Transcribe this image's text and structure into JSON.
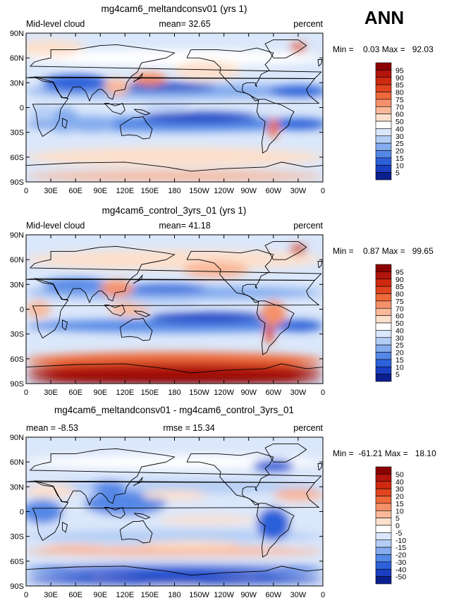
{
  "season": "ANN",
  "chart_data": [
    {
      "type": "heatmap",
      "title": "mg4cam6_meltandconsv01 (yrs 1)",
      "left_label": "Mid-level cloud",
      "center_label": "mean=  32.65",
      "right_label": "percent",
      "minmax": "Min =    0.03 Max =   92.03",
      "x_ticks": [
        "0",
        "30E",
        "60E",
        "90E",
        "120E",
        "150E",
        "180",
        "150W",
        "120W",
        "90W",
        "60W",
        "30W",
        "0"
      ],
      "y_ticks": [
        "90N",
        "60N",
        "30N",
        "0",
        "30S",
        "60S",
        "90S"
      ],
      "colorbar_levels": [
        "95",
        "90",
        "85",
        "80",
        "75",
        "70",
        "60",
        "50",
        "40",
        "30",
        "25",
        "20",
        "15",
        "10",
        "5"
      ],
      "colorbar_colors": [
        "#8b0000",
        "#b2150c",
        "#cf2a10",
        "#e0451f",
        "#ee6a3b",
        "#f5916a",
        "#f9b89a",
        "#fde0cc",
        "#ffffff",
        "#dbe7fa",
        "#b3cdf5",
        "#84acee",
        "#5488e6",
        "#2c61d9",
        "#1a3fc2",
        "#0b1f8f"
      ],
      "field": {
        "mid_lat_cloud": "high",
        "subtropics": "low",
        "itcz_band": "moderate",
        "southern_ocean": "moderate"
      }
    },
    {
      "type": "heatmap",
      "title": "mg4cam6_control_3yrs_01 (yrs 1)",
      "left_label": "Mid-level cloud",
      "center_label": "mean=  41.18",
      "right_label": "percent",
      "minmax": "Min =    0.87 Max =   99.65",
      "x_ticks": [
        "0",
        "30E",
        "60E",
        "90E",
        "120E",
        "150E",
        "180",
        "150W",
        "120W",
        "90W",
        "60W",
        "30W",
        "0"
      ],
      "y_ticks": [
        "90N",
        "60N",
        "30N",
        "0",
        "30S",
        "60S",
        "90S"
      ],
      "colorbar_levels": [
        "95",
        "90",
        "85",
        "80",
        "75",
        "70",
        "60",
        "50",
        "40",
        "30",
        "25",
        "20",
        "15",
        "10",
        "5"
      ],
      "colorbar_colors": [
        "#8b0000",
        "#b2150c",
        "#cf2a10",
        "#e0451f",
        "#ee6a3b",
        "#f5916a",
        "#f9b89a",
        "#fde0cc",
        "#ffffff",
        "#dbe7fa",
        "#b3cdf5",
        "#84acee",
        "#5488e6",
        "#2c61d9",
        "#1a3fc2",
        "#0b1f8f"
      ],
      "field": {
        "mid_lat_cloud": "high",
        "subtropics": "low",
        "itcz_band": "moderate",
        "southern_ocean": "very high"
      }
    },
    {
      "type": "heatmap",
      "title": "mg4cam6_meltandconsv01 - mg4cam6_control_3yrs_01",
      "left_label": "mean =  -8.53",
      "center_label": "rmse =  15.34",
      "right_label": "percent",
      "minmax": "Min =  -61.21 Max =   18.10",
      "x_ticks": [
        "0",
        "30E",
        "60E",
        "90E",
        "120E",
        "150E",
        "180",
        "150W",
        "120W",
        "90W",
        "60W",
        "30W",
        "0"
      ],
      "y_ticks": [
        "90N",
        "60N",
        "30N",
        "0",
        "30S",
        "60S",
        "90S"
      ],
      "colorbar_levels": [
        "50",
        "40",
        "30",
        "20",
        "15",
        "10",
        "5",
        "0",
        "-5",
        "-10",
        "-15",
        "-20",
        "-30",
        "-40",
        "-50"
      ],
      "colorbar_colors": [
        "#8b0000",
        "#b2150c",
        "#cf2a10",
        "#e0451f",
        "#ee6a3b",
        "#f5916a",
        "#f9b89a",
        "#fde0cc",
        "#ffffff",
        "#dbe7fa",
        "#b3cdf5",
        "#84acee",
        "#5488e6",
        "#2c61d9",
        "#1a3fc2",
        "#0b1f8f"
      ],
      "field": {
        "mid_lat_cloud": "neutral",
        "subtropics": "negative",
        "itcz_band": "negative",
        "southern_ocean": "strong negative"
      }
    }
  ]
}
